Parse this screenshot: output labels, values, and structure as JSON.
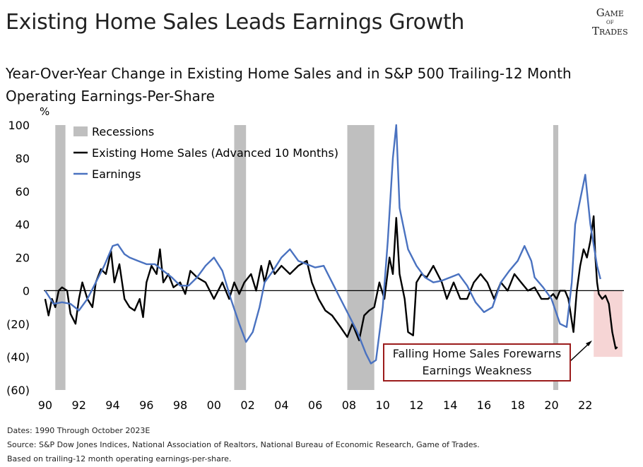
{
  "chart_data": {
    "type": "line",
    "title": "Existing Home Sales Leads Earnings Growth",
    "subtitle": "Year-Over-Year Change in Existing Home Sales and in S&P 500 Trailing-12 Month Operating Earnings-Per-Share",
    "y_unit": "%",
    "logo": [
      "Game",
      "of",
      "Trades"
    ],
    "xlim": [
      1989.5,
      2024.5
    ],
    "xticks": [
      {
        "value": 1990,
        "label": "90"
      },
      {
        "value": 1992,
        "label": "92"
      },
      {
        "value": 1994,
        "label": "94"
      },
      {
        "value": 1996,
        "label": "96"
      },
      {
        "value": 1998,
        "label": "98"
      },
      {
        "value": 2000,
        "label": "00"
      },
      {
        "value": 2002,
        "label": "02"
      },
      {
        "value": 2004,
        "label": "04"
      },
      {
        "value": 2006,
        "label": "06"
      },
      {
        "value": 2008,
        "label": "08"
      },
      {
        "value": 2010,
        "label": "10"
      },
      {
        "value": 2012,
        "label": "12"
      },
      {
        "value": 2014,
        "label": "14"
      },
      {
        "value": 2016,
        "label": "16"
      },
      {
        "value": 2018,
        "label": "18"
      },
      {
        "value": 2020,
        "label": "20"
      },
      {
        "value": 2022,
        "label": "22"
      }
    ],
    "ylim": [
      -60,
      100
    ],
    "yticks": [
      {
        "value": -60,
        "label": "(60)"
      },
      {
        "value": -40,
        "label": "(40)"
      },
      {
        "value": -20,
        "label": "(20)"
      },
      0,
      20,
      40,
      60,
      80,
      100
    ],
    "recessions": {
      "name": "Recessions",
      "color": "#bfbfbf",
      "spans": [
        [
          1990.6,
          1991.2
        ],
        [
          2001.2,
          2001.9
        ],
        [
          2007.9,
          2009.5
        ],
        [
          2020.1,
          2020.4
        ]
      ]
    },
    "forecast_shade": {
      "color": "#f6d5d5",
      "x": [
        2022.5,
        2024.2
      ],
      "y": [
        -40,
        0
      ]
    },
    "series": [
      {
        "name": "Existing Home Sales (Advanced 10 Months)",
        "color": "#000000",
        "x": [
          1990,
          1990.2,
          1990.4,
          1990.6,
          1990.8,
          1991,
          1991.3,
          1991.5,
          1991.8,
          1992,
          1992.2,
          1992.5,
          1992.8,
          1993,
          1993.3,
          1993.6,
          1993.9,
          1994.1,
          1994.4,
          1994.7,
          1995,
          1995.3,
          1995.6,
          1995.8,
          1996,
          1996.3,
          1996.6,
          1996.8,
          1997,
          1997.3,
          1997.6,
          1998,
          1998.3,
          1998.6,
          1999,
          1999.5,
          2000,
          2000.5,
          2000.9,
          2001.2,
          2001.5,
          2001.8,
          2002.2,
          2002.5,
          2002.8,
          2003,
          2003.3,
          2003.6,
          2004,
          2004.5,
          2005,
          2005.5,
          2005.8,
          2006.2,
          2006.6,
          2007,
          2007.5,
          2007.9,
          2008.2,
          2008.6,
          2008.9,
          2009.2,
          2009.5,
          2009.8,
          2010.1,
          2010.4,
          2010.6,
          2010.8,
          2011,
          2011.3,
          2011.5,
          2011.8,
          2012,
          2012.3,
          2012.6,
          2013,
          2013.5,
          2013.8,
          2014.2,
          2014.6,
          2015,
          2015.4,
          2015.8,
          2016.2,
          2016.6,
          2017,
          2017.4,
          2017.8,
          2018.2,
          2018.6,
          2019,
          2019.4,
          2019.8,
          2020.1,
          2020.3,
          2020.5,
          2020.8,
          2021,
          2021.3,
          2021.5,
          2021.7,
          2021.9,
          2022.1,
          2022.3,
          2022.5,
          2022.6,
          2022.7,
          2022.8,
          2023,
          2023.2,
          2023.4,
          2023.6,
          2023.8,
          2023.9
        ],
        "values": [
          -5,
          -15,
          -5,
          -10,
          0,
          2,
          0,
          -14,
          -20,
          -5,
          5,
          -5,
          -10,
          5,
          13,
          10,
          24,
          5,
          16,
          -5,
          -10,
          -12,
          -5,
          -16,
          5,
          15,
          10,
          25,
          5,
          10,
          2,
          5,
          -2,
          12,
          8,
          5,
          -5,
          5,
          -5,
          5,
          -2,
          5,
          10,
          0,
          15,
          5,
          18,
          10,
          15,
          10,
          15,
          18,
          5,
          -5,
          -12,
          -15,
          -22,
          -28,
          -20,
          -30,
          -15,
          -12,
          -10,
          5,
          -5,
          20,
          10,
          44,
          10,
          -5,
          -25,
          -27,
          5,
          10,
          8,
          15,
          5,
          -5,
          5,
          -5,
          -5,
          5,
          10,
          5,
          -5,
          5,
          0,
          10,
          5,
          0,
          2,
          -5,
          -5,
          -2,
          -5,
          0,
          0,
          -5,
          -25,
          0,
          15,
          25,
          20,
          30,
          45,
          20,
          5,
          -2,
          -5,
          -3,
          -8,
          -25,
          -35,
          -34
        ]
      },
      {
        "name": "Earnings",
        "color": "#4a72c0",
        "x": [
          1990,
          1990.5,
          1991,
          1991.5,
          1992,
          1992.5,
          1993,
          1993.5,
          1994,
          1994.3,
          1994.7,
          1995,
          1995.5,
          1996,
          1996.5,
          1997,
          1997.5,
          1998,
          1998.5,
          1999,
          1999.5,
          2000,
          2000.5,
          2001,
          2001.5,
          2001.9,
          2002.3,
          2002.7,
          2003,
          2003.5,
          2004,
          2004.5,
          2005,
          2005.5,
          2006,
          2006.5,
          2007,
          2007.5,
          2008,
          2008.5,
          2009,
          2009.3,
          2009.6,
          2010,
          2010.3,
          2010.6,
          2010.8,
          2011,
          2011.5,
          2012,
          2012.5,
          2013,
          2013.5,
          2014,
          2014.5,
          2015,
          2015.5,
          2016,
          2016.5,
          2017,
          2017.5,
          2018,
          2018.4,
          2018.8,
          2019,
          2019.5,
          2020,
          2020.5,
          2020.9,
          2021.2,
          2021.4,
          2021.7,
          2022,
          2022.3,
          2022.7,
          2022.9
        ],
        "values": [
          0,
          -8,
          -7,
          -8,
          -12,
          -5,
          5,
          15,
          27,
          28,
          22,
          20,
          18,
          16,
          16,
          12,
          8,
          3,
          3,
          8,
          15,
          20,
          12,
          -5,
          -20,
          -31,
          -25,
          -10,
          5,
          12,
          20,
          25,
          18,
          16,
          14,
          15,
          5,
          -5,
          -15,
          -25,
          -38,
          -44,
          -42,
          -10,
          30,
          80,
          100,
          50,
          25,
          15,
          8,
          5,
          6,
          8,
          10,
          3,
          -7,
          -13,
          -10,
          5,
          12,
          18,
          27,
          18,
          8,
          2,
          -5,
          -20,
          -22,
          5,
          40,
          55,
          70,
          40,
          15,
          7
        ]
      }
    ],
    "annotation": "Falling Home Sales Forewarns Earnings Weakness",
    "footnotes": [
      "Dates: 1990 Through  October 2023E",
      "Source: S&P Dow Jones Indices, National Association of Realtors, National Bureau  of Economic Research, Game of Trades.",
      "Based on trailing-12  month operating earnings-per-share."
    ]
  }
}
